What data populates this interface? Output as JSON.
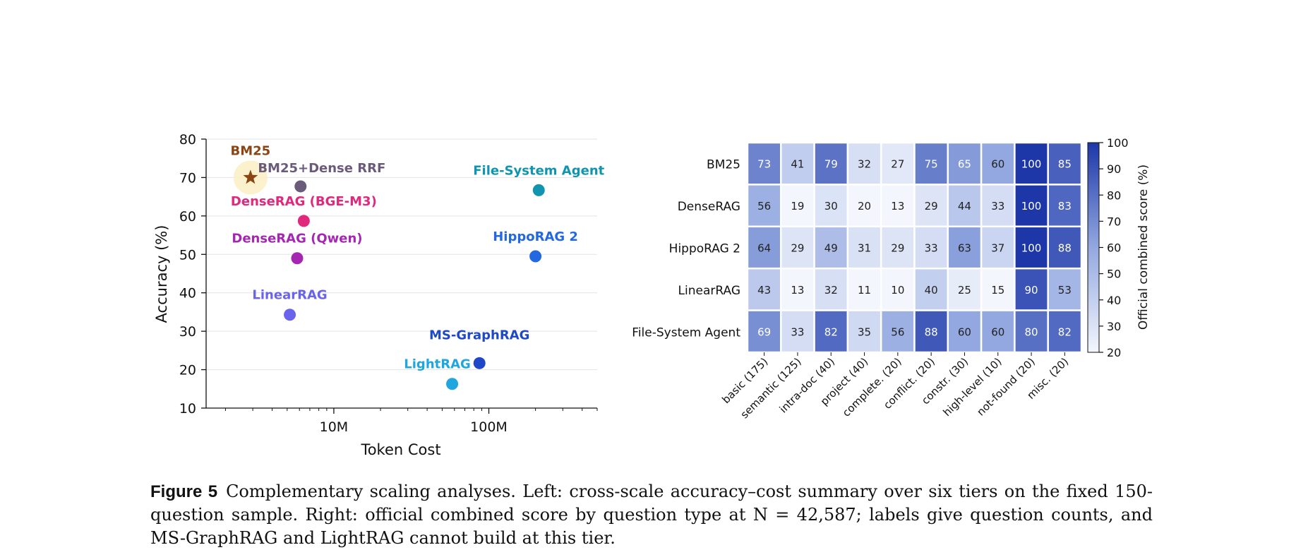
{
  "chart_data": [
    {
      "type": "scatter",
      "xlabel": "Token Cost",
      "ylabel": "Accuracy (%)",
      "xscale": "log",
      "xlim": [
        1500000,
        500000000
      ],
      "ylim": [
        10,
        80
      ],
      "yticks": [
        10,
        20,
        30,
        40,
        50,
        60,
        70,
        80
      ],
      "xticks": [
        {
          "value": 10000000,
          "label": "10M"
        },
        {
          "value": 100000000,
          "label": "100M"
        }
      ],
      "grid": "horizontal",
      "points": [
        {
          "name": "BM25",
          "x": 2900000,
          "y": 70,
          "color": "#8b4513",
          "marker": "star",
          "highlight": true
        },
        {
          "name": "BM25+Dense RRF",
          "x": 6100000,
          "y": 67.7,
          "color": "#6b5b7b",
          "marker": "circle"
        },
        {
          "name": "DenseRAG (BGE-M3)",
          "x": 6400000,
          "y": 58.7,
          "color": "#e0287d",
          "marker": "circle"
        },
        {
          "name": "DenseRAG (Qwen)",
          "x": 5800000,
          "y": 49,
          "color": "#a526b3",
          "marker": "circle"
        },
        {
          "name": "LinearRAG",
          "x": 5200000,
          "y": 34.3,
          "color": "#6a64ec",
          "marker": "circle"
        },
        {
          "name": "File-System Agent",
          "x": 210000000,
          "y": 66.7,
          "color": "#1194b0",
          "marker": "circle"
        },
        {
          "name": "HippoRAG 2",
          "x": 200000000,
          "y": 49.5,
          "color": "#2368e0",
          "marker": "circle"
        },
        {
          "name": "MS-GraphRAG",
          "x": 87000000,
          "y": 21.7,
          "color": "#1f48c8",
          "marker": "circle"
        },
        {
          "name": "LightRAG",
          "x": 58000000,
          "y": 16.3,
          "color": "#1fa6df",
          "marker": "circle"
        }
      ]
    },
    {
      "type": "heatmap",
      "rows": [
        "BM25",
        "DenseRAG",
        "HippoRAG 2",
        "LinearRAG",
        "File-System Agent"
      ],
      "columns": [
        "basic (175)",
        "semantic (125)",
        "intra-doc (40)",
        "project (40)",
        "complete. (20)",
        "conflict. (20)",
        "constr. (30)",
        "high-level (10)",
        "not-found (20)",
        "misc. (20)"
      ],
      "values": [
        [
          73,
          41,
          79,
          32,
          27,
          75,
          65,
          60,
          100,
          85
        ],
        [
          56,
          19,
          30,
          20,
          13,
          29,
          44,
          33,
          100,
          83
        ],
        [
          64,
          29,
          49,
          31,
          29,
          33,
          63,
          37,
          100,
          88
        ],
        [
          43,
          13,
          32,
          11,
          10,
          40,
          25,
          15,
          90,
          53
        ],
        [
          69,
          33,
          82,
          35,
          56,
          88,
          60,
          60,
          80,
          82
        ]
      ],
      "colorbar": {
        "label": "Official combined score (%)",
        "min": 20,
        "max": 100,
        "ticks": [
          20,
          30,
          40,
          50,
          60,
          70,
          80,
          90,
          100
        ],
        "color_low": "#f3f6fd",
        "color_high": "#1d37a8"
      }
    }
  ],
  "caption": {
    "label": "Figure 5",
    "text": "Complementary scaling analyses. Left: cross-scale accuracy–cost summary over six tiers on the fixed 150-question sample. Right: official combined score by question type at N = 42,587; labels give question counts, and MS-GraphRAG and LightRAG cannot build at this tier."
  }
}
